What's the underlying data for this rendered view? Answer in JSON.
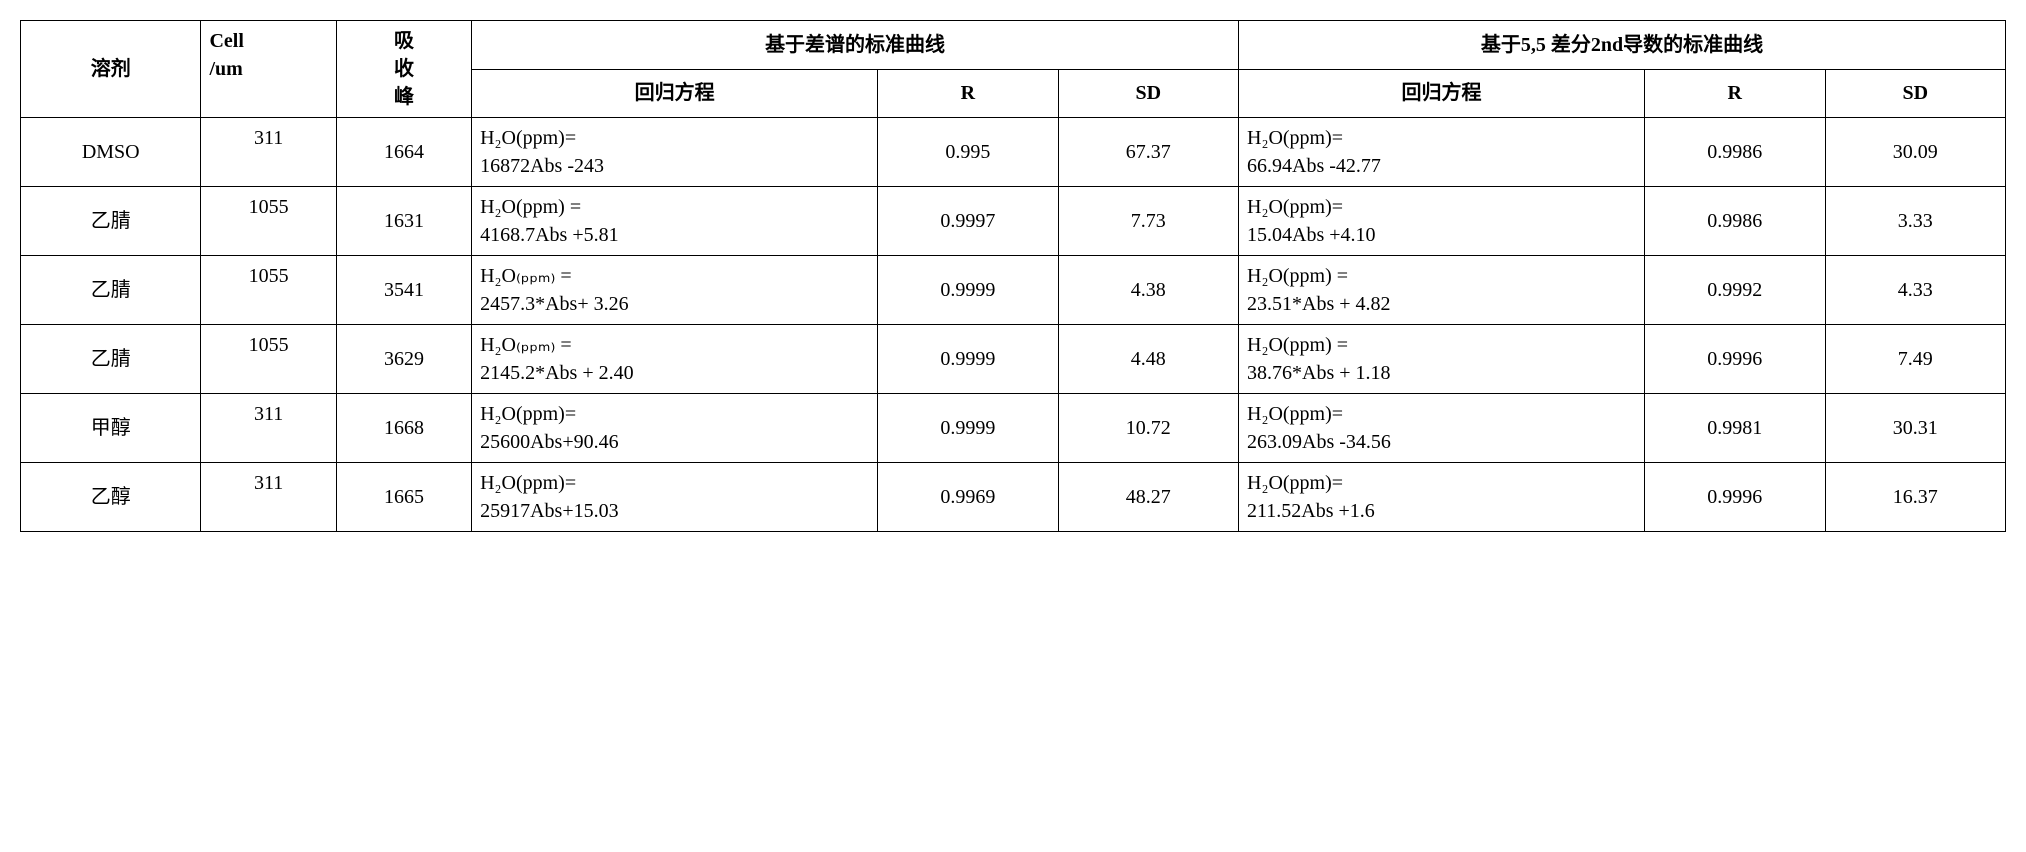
{
  "table": {
    "border_color": "#000000",
    "background_color": "#ffffff",
    "text_color": "#000000",
    "font_family": "Times New Roman / SimSun",
    "font_size_pt": 15,
    "headers": {
      "solvent": "溶剂",
      "cell_um_line1": "Cell",
      "cell_um_line2": "/um",
      "abs_peak_line1": "吸",
      "abs_peak_line2": "收",
      "abs_peak_line3": "峰",
      "group_a": "基于差谱的标准曲线",
      "group_b": "基于5,5  差分2nd导数的标准曲线",
      "eq": "回归方程",
      "r": "R",
      "sd": "SD"
    },
    "rows": [
      {
        "solvent": "DMSO",
        "cell_um": "311",
        "abs_peak": "1664",
        "eq_a_l1": "H₂O(ppm)=",
        "eq_a_l2": "16872Abs -243",
        "r_a": "0.995",
        "sd_a": "67.37",
        "eq_b_l1": "H₂O(ppm)=",
        "eq_b_l2": "66.94Abs -42.77",
        "r_b": "0.9986",
        "sd_b": "30.09"
      },
      {
        "solvent": "乙腈",
        "cell_um": "1055",
        "abs_peak": "1631",
        "eq_a_l1": "H₂O(ppm) =",
        "eq_a_l2": "4168.7Abs +5.81",
        "r_a": "0.9997",
        "sd_a": "7.73",
        "eq_b_l1": "H₂O(ppm)=",
        "eq_b_l2": "15.04Abs +4.10",
        "r_b": "0.9986",
        "sd_b": "3.33"
      },
      {
        "solvent": "乙腈",
        "cell_um": "1055",
        "abs_peak": "3541",
        "eq_a_l1": "H₂O₍ₚₚₘ₎ =",
        "eq_a_l2": "2457.3*Abs+ 3.26",
        "r_a": "0.9999",
        "sd_a": "4.38",
        "eq_b_l1": "H₂O(ppm) =",
        "eq_b_l2": "23.51*Abs + 4.82",
        "r_b": "0.9992",
        "sd_b": "4.33"
      },
      {
        "solvent": "乙腈",
        "cell_um": "1055",
        "abs_peak": "3629",
        "eq_a_l1": "H₂O₍ₚₚₘ₎ =",
        "eq_a_l2": "2145.2*Abs + 2.40",
        "r_a": "0.9999",
        "sd_a": "4.48",
        "eq_b_l1": "H₂O(ppm) =",
        "eq_b_l2": "38.76*Abs + 1.18",
        "r_b": "0.9996",
        "sd_b": "7.49"
      },
      {
        "solvent": "甲醇",
        "cell_um": "311",
        "abs_peak": "1668",
        "eq_a_l1": "H₂O(ppm)=",
        "eq_a_l2": "25600Abs+90.46",
        "r_a": "0.9999",
        "sd_a": "10.72",
        "eq_b_l1": "H₂O(ppm)=",
        "eq_b_l2": "263.09Abs -34.56",
        "r_b": "0.9981",
        "sd_b": "30.31"
      },
      {
        "solvent": "乙醇",
        "cell_um": "311",
        "abs_peak": "1665",
        "eq_a_l1": "H₂O(ppm)=",
        "eq_a_l2": "25917Abs+15.03",
        "r_a": "0.9969",
        "sd_a": "48.27",
        "eq_b_l1": "H₂O(ppm)=",
        "eq_b_l2": "211.52Abs +1.6",
        "r_b": "0.9996",
        "sd_b": "16.37"
      }
    ]
  }
}
